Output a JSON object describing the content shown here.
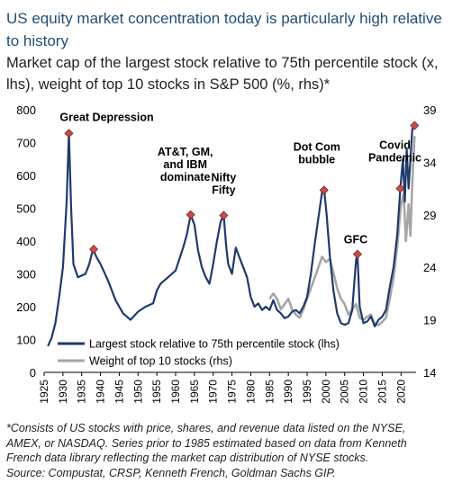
{
  "header": {
    "title": "US equity market concentration today is particularly high relative to history",
    "subtitle": "Market cap of the largest stock relative to 75th percentile stock (x, lhs), weight of top 10 stocks in S&P 500 (%, rhs)*"
  },
  "footnote": {
    "lines": [
      "*Consists of US stocks with price, shares, and revenue data listed on the NYSE,",
      "AMEX, or NASDAQ. Series prior to 1985 estimated based on data from Kenneth",
      "French data library reflecting the market cap distribution of NYSE stocks.",
      "Source: Compustat, CRSP, Kenneth French, Goldman Sachs GIP."
    ]
  },
  "chart_data": {
    "type": "line",
    "x_ticks": [
      "1925",
      "1930",
      "1935",
      "1940",
      "1945",
      "1950",
      "1955",
      "1960",
      "1965",
      "1970",
      "1975",
      "1980",
      "1985",
      "1990",
      "1995",
      "2000",
      "2005",
      "2010",
      "2015",
      "2020"
    ],
    "xlim": [
      1925,
      2024
    ],
    "y_left": {
      "ticks": [
        "0",
        "100",
        "200",
        "300",
        "400",
        "500",
        "600",
        "700",
        "800"
      ],
      "lim": [
        0,
        800
      ]
    },
    "y_right": {
      "ticks": [
        "14",
        "19",
        "24",
        "29",
        "34",
        "39"
      ],
      "lim": [
        14,
        39
      ]
    },
    "series": [
      {
        "name": "Largest stock relative to 75th percentile stock (lhs)",
        "axis": "left",
        "color": "#1f3a6b",
        "points": [
          [
            1926,
            80
          ],
          [
            1927,
            105
          ],
          [
            1928,
            150
          ],
          [
            1929,
            230
          ],
          [
            1930,
            320
          ],
          [
            1931,
            520
          ],
          [
            1931.6,
            730
          ],
          [
            1932.2,
            500
          ],
          [
            1932.8,
            330
          ],
          [
            1934,
            290
          ],
          [
            1936,
            300
          ],
          [
            1937,
            330
          ],
          [
            1938,
            375
          ],
          [
            1939,
            350
          ],
          [
            1940,
            330
          ],
          [
            1942,
            280
          ],
          [
            1944,
            220
          ],
          [
            1946,
            180
          ],
          [
            1948,
            160
          ],
          [
            1950,
            185
          ],
          [
            1952,
            200
          ],
          [
            1954,
            210
          ],
          [
            1955,
            250
          ],
          [
            1956,
            270
          ],
          [
            1958,
            290
          ],
          [
            1960,
            310
          ],
          [
            1962,
            380
          ],
          [
            1963,
            420
          ],
          [
            1964,
            480
          ],
          [
            1965,
            450
          ],
          [
            1966,
            370
          ],
          [
            1967,
            320
          ],
          [
            1968,
            290
          ],
          [
            1969,
            270
          ],
          [
            1970,
            330
          ],
          [
            1971,
            400
          ],
          [
            1972,
            460
          ],
          [
            1972.8,
            478
          ],
          [
            1973.5,
            380
          ],
          [
            1974,
            330
          ],
          [
            1975,
            300
          ],
          [
            1976,
            380
          ],
          [
            1977,
            350
          ],
          [
            1978,
            320
          ],
          [
            1979,
            290
          ],
          [
            1980,
            230
          ],
          [
            1981,
            200
          ],
          [
            1982,
            210
          ],
          [
            1983,
            190
          ],
          [
            1984,
            200
          ],
          [
            1985,
            190
          ],
          [
            1986,
            220
          ],
          [
            1987,
            190
          ],
          [
            1988,
            180
          ],
          [
            1989,
            165
          ],
          [
            1990,
            170
          ],
          [
            1991,
            185
          ],
          [
            1992,
            190
          ],
          [
            1993,
            180
          ],
          [
            1994,
            200
          ],
          [
            1995,
            230
          ],
          [
            1996,
            300
          ],
          [
            1997,
            390
          ],
          [
            1998,
            470
          ],
          [
            1999,
            550
          ],
          [
            1999.5,
            560
          ],
          [
            2000.2,
            480
          ],
          [
            2001,
            360
          ],
          [
            2002,
            250
          ],
          [
            2003,
            180
          ],
          [
            2004,
            150
          ],
          [
            2005,
            145
          ],
          [
            2006,
            150
          ],
          [
            2007,
            190
          ],
          [
            2008,
            340
          ],
          [
            2008.4,
            360
          ],
          [
            2009,
            200
          ],
          [
            2010,
            150
          ],
          [
            2011,
            155
          ],
          [
            2012,
            170
          ],
          [
            2013,
            140
          ],
          [
            2014,
            160
          ],
          [
            2015,
            170
          ],
          [
            2016,
            190
          ],
          [
            2017,
            260
          ],
          [
            2018,
            320
          ],
          [
            2019,
            420
          ],
          [
            2019.8,
            560
          ],
          [
            2020.5,
            650
          ],
          [
            2021,
            520
          ],
          [
            2021.5,
            680
          ],
          [
            2022,
            560
          ],
          [
            2023,
            740
          ],
          [
            2023.6,
            755
          ]
        ]
      },
      {
        "name": "Weight of top 10 stocks (rhs)",
        "axis": "right",
        "color": "#a6a6a6",
        "points": [
          [
            1985,
            21
          ],
          [
            1986,
            21.5
          ],
          [
            1987,
            21
          ],
          [
            1988,
            20
          ],
          [
            1989,
            20.5
          ],
          [
            1990,
            21
          ],
          [
            1991,
            20
          ],
          [
            1992,
            19.5
          ],
          [
            1993,
            19.2
          ],
          [
            1994,
            20
          ],
          [
            1995,
            21
          ],
          [
            1996,
            22
          ],
          [
            1997,
            23
          ],
          [
            1998,
            24
          ],
          [
            1999,
            25
          ],
          [
            2000,
            24.5
          ],
          [
            2001,
            24.8
          ],
          [
            2002,
            23.5
          ],
          [
            2003,
            22
          ],
          [
            2004,
            21
          ],
          [
            2005,
            20.5
          ],
          [
            2006,
            19.5
          ],
          [
            2007,
            20
          ],
          [
            2008,
            20.5
          ],
          [
            2009,
            19.2
          ],
          [
            2010,
            19
          ],
          [
            2011,
            19.3
          ],
          [
            2012,
            19.5
          ],
          [
            2013,
            18.6
          ],
          [
            2014,
            18.5
          ],
          [
            2015,
            18.8
          ],
          [
            2016,
            19.2
          ],
          [
            2017,
            21
          ],
          [
            2018,
            23
          ],
          [
            2019,
            26
          ],
          [
            2020,
            30
          ],
          [
            2020.7,
            31
          ],
          [
            2021.3,
            26.5
          ],
          [
            2022,
            30
          ],
          [
            2022.5,
            27
          ],
          [
            2023,
            32
          ],
          [
            2023.6,
            36.5
          ]
        ]
      }
    ],
    "annotations": [
      {
        "text": [
          "Great Depression"
        ],
        "x": 1931.6,
        "y": 728
      },
      {
        "text": [],
        "x": 1938.2,
        "y": 375
      },
      {
        "text": [
          "AT&T, GM,",
          "and IBM",
          "dominate"
        ],
        "x": 1964,
        "y": 480
      },
      {
        "text": [
          "Nifty",
          "Fifty"
        ],
        "x": 1972.8,
        "y": 478
      },
      {
        "text": [
          "Dot Com",
          "bubble"
        ],
        "x": 1999.5,
        "y": 555
      },
      {
        "text": [
          "GFC"
        ],
        "x": 2008.4,
        "y": 360
      },
      {
        "text": [
          "Covid",
          "Pandemic"
        ],
        "x": 2019.8,
        "y": 560
      },
      {
        "text": [],
        "x": 2023.6,
        "y": 752
      }
    ],
    "legend_position": "bottom-left"
  }
}
